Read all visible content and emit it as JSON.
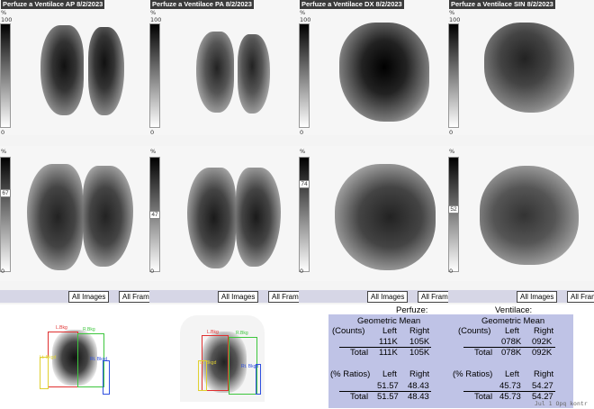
{
  "panels": [
    {
      "title": "Perfuze a Ventilace AP 8/2/2023",
      "scale_top_pct": "%",
      "scale_top": "100",
      "scale_bottom": "0",
      "mid_label": "",
      "scale2_top_pct": "%",
      "scale2_bottom": "0",
      "scale2_mid": "67"
    },
    {
      "title": "Perfuze a Ventilace PA 8/2/2023",
      "scale_top_pct": "%",
      "scale_top": "100",
      "scale_bottom": "0",
      "mid_label": "",
      "scale2_top_pct": "%",
      "scale2_bottom": "0",
      "scale2_mid": "47"
    },
    {
      "title": "Perfuze a Ventilace DX 8/2/2023",
      "scale_top_pct": "%",
      "scale_top": "100",
      "scale_bottom": "0",
      "mid_label": "",
      "scale2_top_pct": "%",
      "scale2_bottom": "0",
      "scale2_mid": "74"
    },
    {
      "title": "Perfuze a Ventilace SIN 8/2/2023",
      "scale_top_pct": "%",
      "scale_top": "100",
      "scale_bottom": "0",
      "mid_label": "",
      "scale2_top_pct": "%",
      "scale2_bottom": "0",
      "scale2_mid": "52"
    }
  ],
  "buttons": {
    "all_images": "All Images",
    "all_frames": "All Fram"
  },
  "roi": {
    "left_label": "L.Bkg",
    "right_label": "R.Bkg",
    "lt_label": "Lt. Bkgd",
    "rt_label": "Rt. Bkgd"
  },
  "table": {
    "perf_title": "Perfuze:",
    "vent_title": "Ventilace:",
    "geo_mean": "Geometric Mean",
    "counts": "(Counts)",
    "left": "Left",
    "right": "Right",
    "total": "Total",
    "ratios": "(% Ratios)",
    "perf_counts_left": "111K",
    "perf_counts_right": "105K",
    "perf_total_left": "111K",
    "perf_total_right": "105K",
    "vent_counts_left": "078K",
    "vent_counts_right": "092K",
    "vent_total_left": "078K",
    "vent_total_right": "092K",
    "perf_ratio_left": "51.57",
    "perf_ratio_right": "48.43",
    "perf_rtotal_left": "51.57",
    "perf_rtotal_right": "48.43",
    "vent_ratio_left": "45.73",
    "vent_ratio_right": "54.27",
    "vent_rtotal_left": "45.73",
    "vent_rtotal_right": "54.27"
  },
  "watermark": "Jul 1 Opq kontr"
}
